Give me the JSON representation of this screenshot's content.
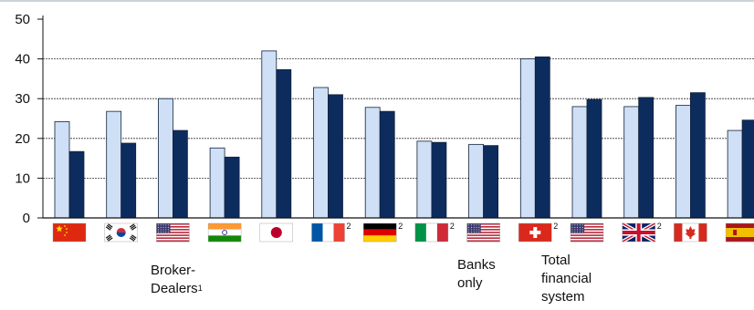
{
  "chart_data": {
    "type": "bar",
    "title": "",
    "xlabel": "",
    "ylabel": "",
    "ylim": [
      0,
      50
    ],
    "yticks": [
      "0",
      "10",
      "20",
      "30",
      "40",
      "50"
    ],
    "grid": true,
    "categories": [
      "China",
      "Korea",
      "United States",
      "India",
      "Japan",
      "France",
      "Germany",
      "Italy",
      "United States",
      "Switzerland",
      "United States",
      "United Kingdom",
      "Canada",
      "Spain"
    ],
    "flag_icons": [
      "china-flag-icon",
      "korea-flag-icon",
      "us-flag-icon",
      "india-flag-icon",
      "japan-flag-icon",
      "france-flag-icon",
      "germany-flag-icon",
      "italy-flag-icon",
      "us-flag-icon",
      "switzerland-flag-icon",
      "us-flag-icon",
      "uk-flag-icon",
      "canada-flag-icon",
      "spain-flag-icon"
    ],
    "flag_notes": [
      "",
      "",
      "",
      "",
      "",
      "2",
      "2",
      "2",
      "",
      "2",
      "",
      "2",
      "",
      ""
    ],
    "series": [
      {
        "values": [
          24.2,
          26.8,
          30.0,
          17.6,
          42.0,
          32.8,
          27.8,
          19.3,
          18.5,
          40.0,
          28.0,
          28.0,
          28.3,
          22.0
        ]
      },
      {
        "values": [
          16.7,
          18.8,
          22.0,
          15.3,
          37.3,
          31.0,
          26.8,
          19.0,
          18.2,
          40.5,
          29.8,
          30.3,
          31.5,
          24.6
        ]
      }
    ],
    "colors": {
      "series1": "#cfe0f6",
      "series2": "#0d2c5e",
      "bar_edge": "#11203a",
      "grid": "#333333"
    },
    "annotations": [
      {
        "text": "Broker-\nDealers",
        "note": "1"
      },
      {
        "text": "Banks\nonly",
        "note": ""
      },
      {
        "text": "Total\nfinancial\nsystem",
        "note": ""
      }
    ]
  }
}
